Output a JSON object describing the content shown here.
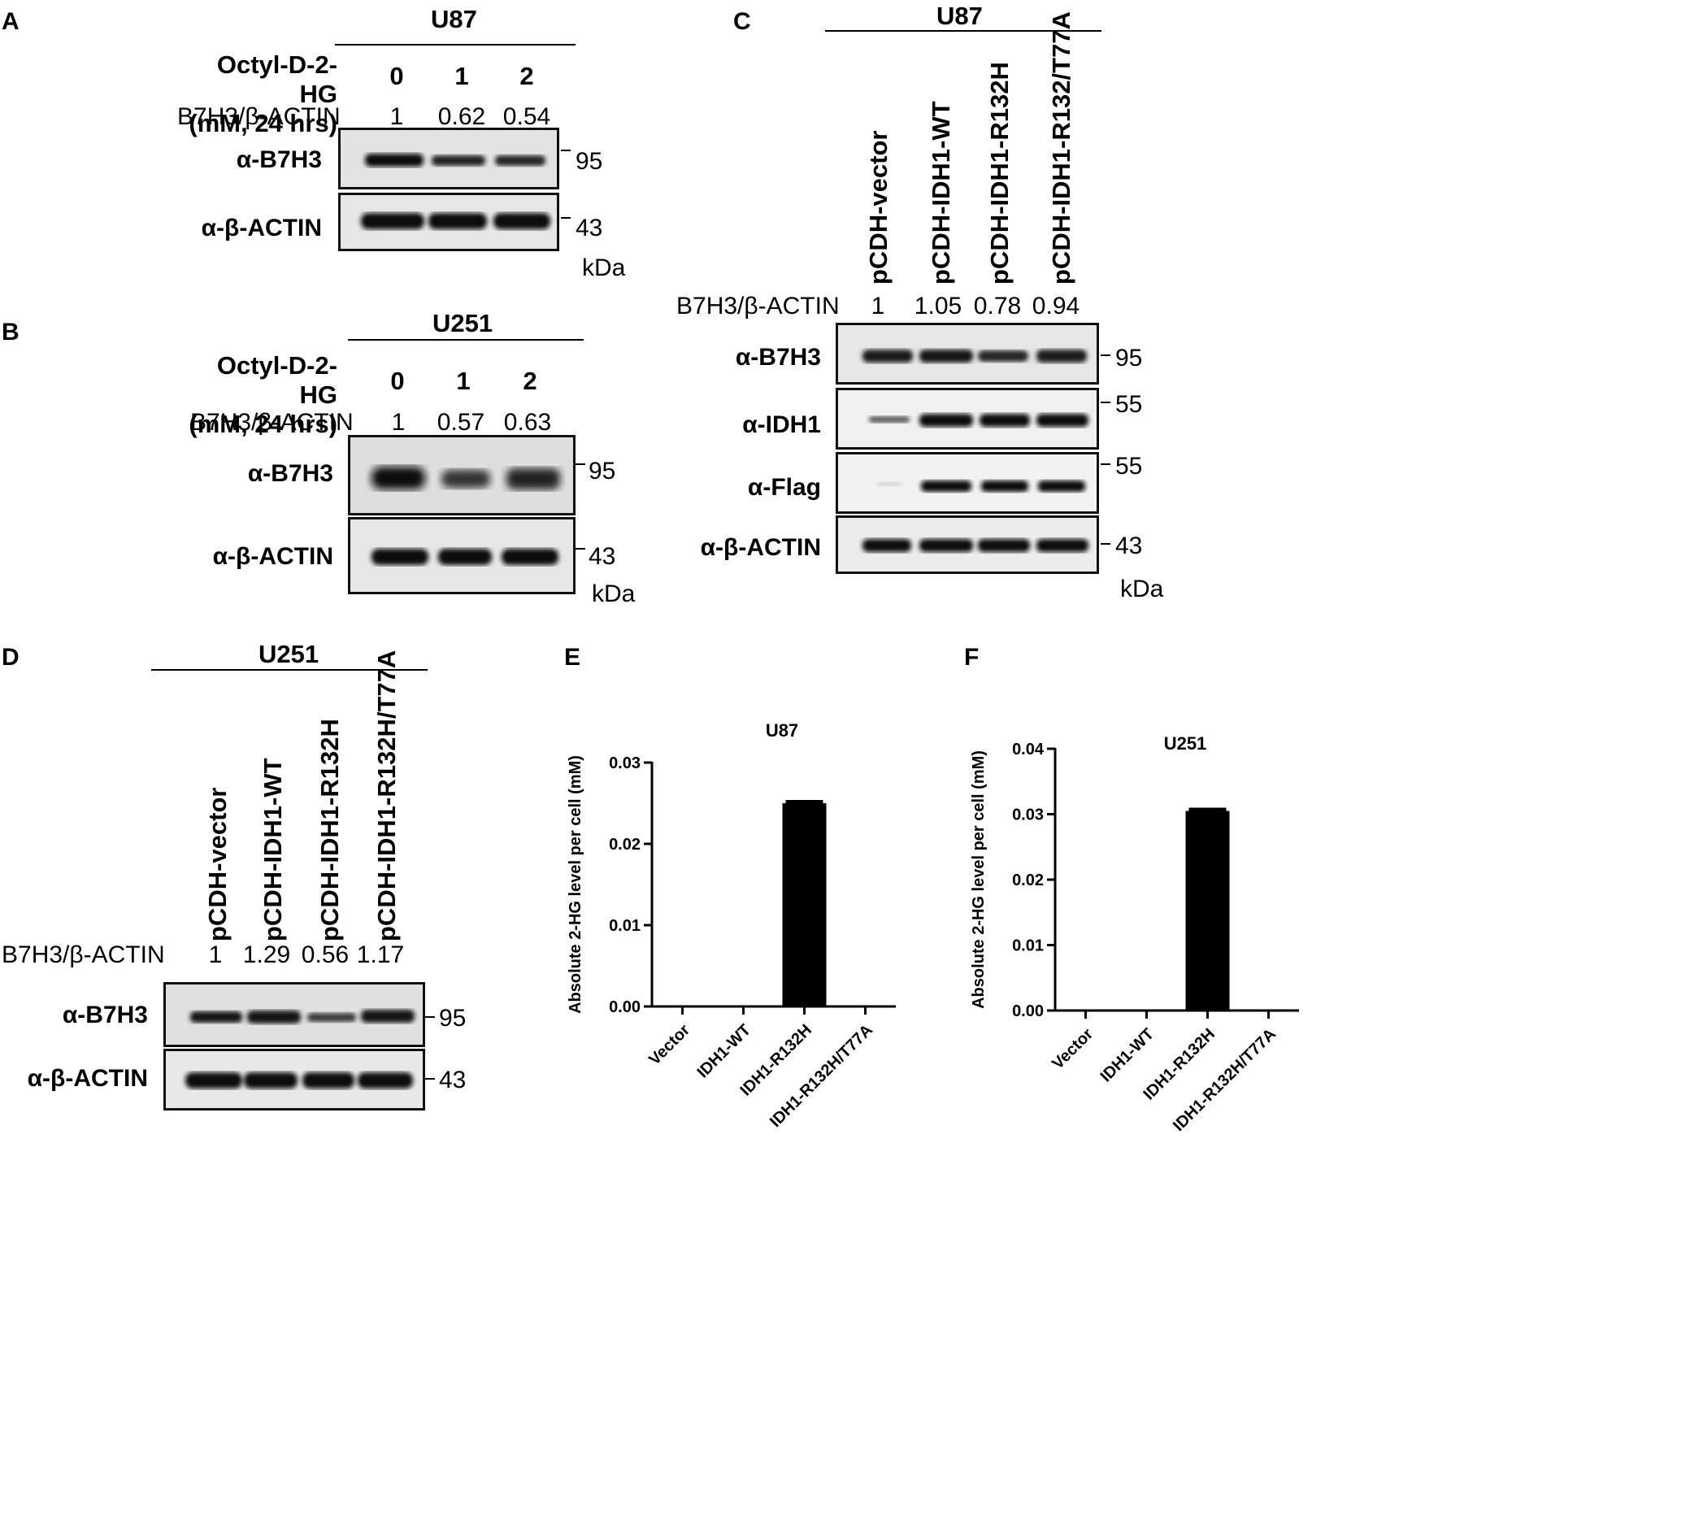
{
  "panels": {
    "A": {
      "label": "A",
      "cell_line": "U87",
      "treatment_label": [
        "Octyl-D-2-HG",
        "(mM, 24 hrs)"
      ],
      "doses": [
        "0",
        "1",
        "2"
      ],
      "ratio_label": "B7H3/β-ACTIN",
      "ratios": [
        "1",
        "0.62",
        "0.54"
      ],
      "blots": [
        {
          "antibody": "α-B7H3",
          "mw": "95"
        },
        {
          "antibody": "α-β-ACTIN",
          "mw": "43"
        }
      ],
      "kda": "kDa"
    },
    "B": {
      "label": "B",
      "cell_line": "U251",
      "treatment_label": [
        "Octyl-D-2-HG",
        "(mM, 24 hrs)"
      ],
      "doses": [
        "0",
        "1",
        "2"
      ],
      "ratio_label": "B7H3/β-ACTIN",
      "ratios": [
        "1",
        "0.57",
        "0.63"
      ],
      "blots": [
        {
          "antibody": "α-B7H3",
          "mw": "95"
        },
        {
          "antibody": "α-β-ACTIN",
          "mw": "43"
        }
      ],
      "kda": "kDa"
    },
    "C": {
      "label": "C",
      "cell_line": "U87",
      "lanes": [
        "pCDH-vector",
        "pCDH-IDH1-WT",
        "pCDH-IDH1-R132H",
        "pCDH-IDH1-R132/T77A"
      ],
      "ratio_label": "B7H3/β-ACTIN",
      "ratios": [
        "1",
        "1.05",
        "0.78",
        "0.94"
      ],
      "blots": [
        {
          "antibody": "α-B7H3",
          "mw": "95"
        },
        {
          "antibody": "α-IDH1",
          "mw": "55"
        },
        {
          "antibody": "α-Flag",
          "mw": "55"
        },
        {
          "antibody": "α-β-ACTIN",
          "mw": "43"
        }
      ],
      "kda": "kDa"
    },
    "D": {
      "label": "D",
      "cell_line": "U251",
      "lanes": [
        "pCDH-vector",
        "pCDH-IDH1-WT",
        "pCDH-IDH1-R132H",
        "pCDH-IDH1-R132H/T77A"
      ],
      "ratio_label": "B7H3/β-ACTIN",
      "ratios": [
        "1",
        "1.29",
        "0.56",
        "1.17"
      ],
      "blots": [
        {
          "antibody": "α-B7H3",
          "mw": "95"
        },
        {
          "antibody": "α-β-ACTIN",
          "mw": "43"
        }
      ]
    },
    "E": {
      "label": "E"
    },
    "F": {
      "label": "F"
    }
  },
  "chart_data": [
    {
      "panel": "E",
      "type": "bar",
      "title": "U87",
      "ylabel": "Absolute 2-HG level per cell (mM)",
      "xlabel": "",
      "categories": [
        "Vector",
        "IDH1-WT",
        "IDH1-R132H",
        "IDH1-R132H/T77A"
      ],
      "values": [
        0,
        0,
        0.025,
        0
      ],
      "ylim": [
        0,
        0.03
      ],
      "yticks": [
        "0.00",
        "0.01",
        "0.02",
        "0.03"
      ],
      "bar_color": "#000000",
      "grid": false
    },
    {
      "panel": "F",
      "type": "bar",
      "title": "U251",
      "ylabel": "Absolute 2-HG level per cell (mM)",
      "xlabel": "",
      "categories": [
        "Vector",
        "IDH1-WT",
        "IDH1-R132H",
        "IDH1-R132H/T77A"
      ],
      "values": [
        0,
        0,
        0.0305,
        0
      ],
      "ylim": [
        0,
        0.04
      ],
      "yticks": [
        "0.00",
        "0.01",
        "0.02",
        "0.03",
        "0.04"
      ],
      "bar_color": "#000000",
      "grid": false
    }
  ]
}
